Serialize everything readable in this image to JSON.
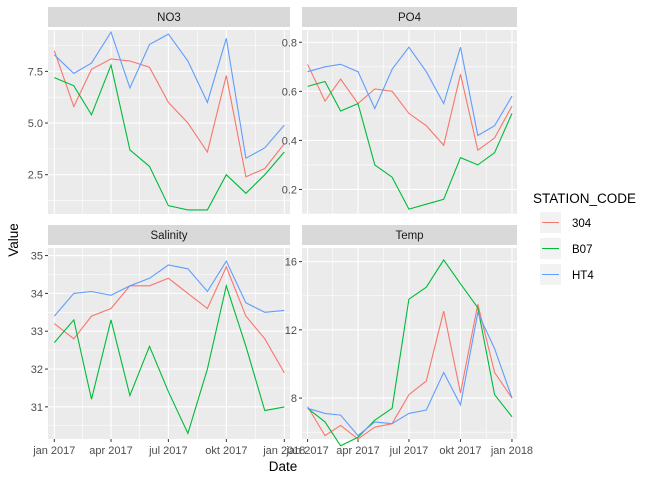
{
  "chart_data": {
    "type": "line",
    "xlabel": "Date",
    "ylabel": "Value",
    "x": [
      "2017-01",
      "2017-02",
      "2017-03",
      "2017-04",
      "2017-05",
      "2017-06",
      "2017-07",
      "2017-08",
      "2017-09",
      "2017-10",
      "2017-11",
      "2017-12",
      "2018-01"
    ],
    "xlim": [
      "2016-12-22",
      "2018-01-10"
    ],
    "x_ticks": [
      "2017-01",
      "2017-04",
      "2017-07",
      "2017-10",
      "2018-01"
    ],
    "x_tick_labels": [
      "jan 2017",
      "apr 2017",
      "jul 2017",
      "okt 2017",
      "jan 2018"
    ],
    "legend": {
      "title": "STATION_CODE",
      "placement": "right",
      "entries": [
        {
          "name": "304",
          "color": "#F8766D"
        },
        {
          "name": "B07",
          "color": "#00BA38"
        },
        {
          "name": "HT4",
          "color": "#619CFF"
        }
      ]
    },
    "grid": true,
    "panels": [
      {
        "title": "NO3",
        "ylim": [
          0.6,
          9.5
        ],
        "y_ticks": [
          2.5,
          5.0,
          7.5
        ],
        "y_tick_labels": [
          "2.5",
          "5.0",
          "7.5"
        ],
        "series": [
          {
            "name": "304",
            "values": [
              8.5,
              5.8,
              7.6,
              8.1,
              8.0,
              7.7,
              6.0,
              5.0,
              3.6,
              7.3,
              2.4,
              2.8,
              4.0
            ]
          },
          {
            "name": "B07",
            "values": [
              7.2,
              6.8,
              5.4,
              7.8,
              3.7,
              2.9,
              1.0,
              0.8,
              0.8,
              2.5,
              1.6,
              2.5,
              3.6
            ]
          },
          {
            "name": "HT4",
            "values": [
              8.3,
              7.4,
              7.9,
              9.4,
              6.7,
              8.8,
              9.3,
              8.0,
              6.0,
              9.1,
              3.3,
              3.8,
              4.9
            ]
          }
        ]
      },
      {
        "title": "PO4",
        "ylim": [
          0.1,
          0.85
        ],
        "y_ticks": [
          0.2,
          0.4,
          0.6,
          0.8
        ],
        "y_tick_labels": [
          "0.2",
          "0.4",
          "0.6",
          "0.8"
        ],
        "series": [
          {
            "name": "304",
            "values": [
              0.71,
              0.56,
              0.65,
              0.55,
              0.61,
              0.6,
              0.51,
              0.46,
              0.38,
              0.67,
              0.36,
              0.41,
              0.54
            ]
          },
          {
            "name": "B07",
            "values": [
              0.62,
              0.64,
              0.52,
              0.55,
              0.3,
              0.25,
              0.12,
              0.14,
              0.16,
              0.33,
              0.3,
              0.35,
              0.51
            ]
          },
          {
            "name": "HT4",
            "values": [
              0.68,
              0.7,
              0.71,
              0.68,
              0.53,
              0.69,
              0.78,
              0.68,
              0.55,
              0.78,
              0.42,
              0.46,
              0.58
            ]
          }
        ]
      },
      {
        "title": "Salinity",
        "ylim": [
          30.15,
          35.2
        ],
        "y_ticks": [
          31,
          32,
          33,
          34,
          35
        ],
        "y_tick_labels": [
          "31",
          "32",
          "33",
          "34",
          "35"
        ],
        "series": [
          {
            "name": "304",
            "values": [
              33.2,
              32.8,
              33.4,
              33.6,
              34.2,
              34.2,
              34.4,
              34.0,
              33.6,
              34.7,
              33.4,
              32.8,
              31.9
            ]
          },
          {
            "name": "B07",
            "values": [
              32.7,
              33.3,
              31.2,
              33.3,
              31.3,
              32.6,
              31.4,
              30.3,
              32.0,
              34.2,
              32.6,
              30.9,
              31.0
            ]
          },
          {
            "name": "HT4",
            "values": [
              33.4,
              34.0,
              34.05,
              33.95,
              34.2,
              34.4,
              34.75,
              34.65,
              34.05,
              34.85,
              33.75,
              33.5,
              33.55
            ]
          }
        ]
      },
      {
        "title": "Temp",
        "ylim": [
          5.6,
          16.8
        ],
        "y_ticks": [
          8,
          12,
          16
        ],
        "y_tick_labels": [
          "8",
          "12",
          "16"
        ],
        "series": [
          {
            "name": "304",
            "values": [
              7.5,
              5.8,
              6.4,
              5.6,
              6.3,
              6.5,
              8.2,
              9.0,
              13.1,
              8.3,
              13.5,
              9.5,
              8.0
            ]
          },
          {
            "name": "B07",
            "values": [
              7.4,
              6.6,
              5.2,
              5.7,
              6.7,
              7.4,
              13.8,
              14.5,
              16.1,
              14.7,
              13.3,
              8.2,
              6.9
            ]
          },
          {
            "name": "HT4",
            "values": [
              7.4,
              7.1,
              7.0,
              5.8,
              6.6,
              6.5,
              7.1,
              7.3,
              9.5,
              7.6,
              13.0,
              10.9,
              8.0
            ]
          }
        ]
      }
    ]
  }
}
